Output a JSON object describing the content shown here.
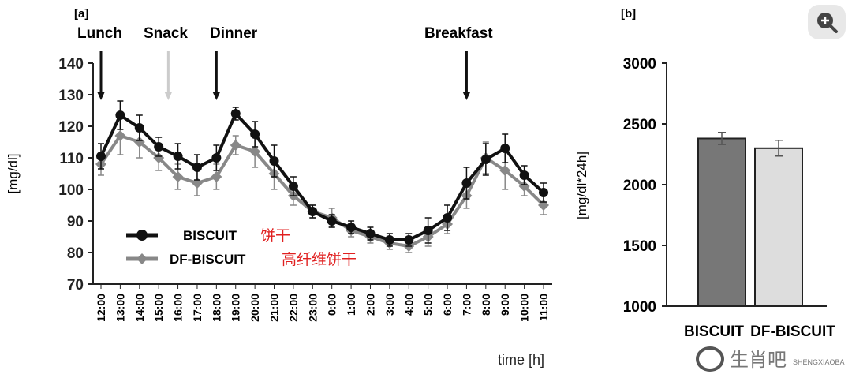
{
  "chart_data": [
    {
      "type": "line",
      "panel": "[a]",
      "ylabel": "[mg/dl]",
      "xlabel": "time [h]",
      "ylim": [
        70,
        140
      ],
      "yticks": [
        70,
        80,
        90,
        100,
        110,
        120,
        130,
        140
      ],
      "categories": [
        "12:00",
        "13:00",
        "14:00",
        "15:00",
        "16:00",
        "17:00",
        "18:00",
        "19:00",
        "20:00",
        "21:00",
        "22:00",
        "23:00",
        "0:00",
        "1:00",
        "2:00",
        "3:00",
        "4:00",
        "5:00",
        "6:00",
        "7:00",
        "8:00",
        "9:00",
        "10:00",
        "11:00"
      ],
      "series": [
        {
          "name": "BISCUIT",
          "name_cn": "饼干",
          "color": "#111111",
          "values": [
            110.5,
            123.5,
            119.5,
            113.5,
            110.5,
            107,
            110,
            124,
            117.5,
            109,
            101,
            93,
            90,
            88,
            86,
            84,
            84,
            87,
            91,
            102,
            109.5,
            113,
            104.5,
            99
          ],
          "errors": [
            4,
            4.5,
            4,
            3,
            4,
            4,
            4,
            2,
            4,
            5,
            3,
            2,
            2,
            2,
            2,
            2,
            2,
            4,
            4,
            5,
            5,
            4.5,
            3,
            3
          ]
        },
        {
          "name": "DF-BISCUIT",
          "name_cn": "高纤维饼干",
          "color": "#888888",
          "values": [
            108,
            117,
            115,
            110,
            104,
            102,
            104,
            114,
            112,
            105,
            98,
            93,
            91,
            87,
            85,
            83,
            82,
            85,
            89,
            98,
            110,
            106,
            101,
            95
          ],
          "errors": [
            3.5,
            6,
            5,
            4,
            4,
            4,
            4,
            3,
            5,
            5,
            3,
            2,
            3,
            2,
            2,
            2,
            2,
            3,
            3,
            4,
            5,
            6,
            3,
            3
          ]
        }
      ],
      "annotations": [
        {
          "label": "Lunch",
          "at": "12:00",
          "color": "#111111"
        },
        {
          "label": "Snack",
          "at": "15:30",
          "color": "#cccccc"
        },
        {
          "label": "Dinner",
          "at": "18:00",
          "color": "#111111"
        },
        {
          "label": "Breakfast",
          "at": "7:00",
          "color": "#111111"
        }
      ]
    },
    {
      "type": "bar",
      "panel": "[b]",
      "ylabel": "[mg/dl*24h]",
      "ylim": [
        1000,
        3000
      ],
      "yticks": [
        1000,
        1500,
        2000,
        2500,
        3000
      ],
      "categories": [
        "BISCUIT",
        "DF-BISCUIT"
      ],
      "values": [
        2380,
        2300
      ],
      "errors": [
        50,
        65
      ],
      "colors": [
        "#777777",
        "#dddddd"
      ]
    }
  ],
  "watermark": {
    "text": "生肖吧",
    "sub": "SHENGXIAOBA"
  }
}
